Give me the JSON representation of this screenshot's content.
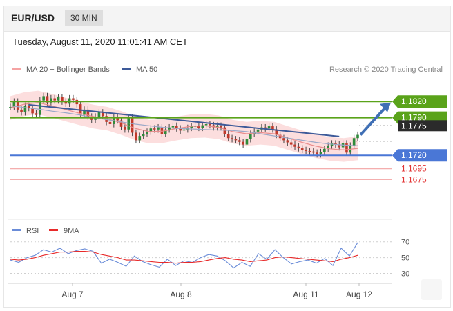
{
  "header": {
    "symbol": "EUR/USD",
    "timeframe": "30 MIN"
  },
  "datetime": "Tuesday, August 11, 2020 11:01:41 AM CET",
  "legend": {
    "ma20": "MA 20 + Bollinger Bands",
    "ma50": "MA 50",
    "research": "Research © 2020 Trading Central"
  },
  "rsi_legend": {
    "rsi": "RSI",
    "ma": "9MA"
  },
  "colors": {
    "green": "#5aa31a",
    "blue": "#4a77d6",
    "red": "#f26a6a",
    "bollinger": "#fbd3d3",
    "up": "#2e8b3a",
    "down": "#c0392b",
    "ma50": "#3d5a99"
  },
  "chart_data": [
    {
      "type": "line",
      "title": "",
      "x_ticks": [
        "Aug 7",
        "Aug 8",
        "Aug 11",
        "Aug 12"
      ],
      "levels": [
        {
          "value": 1.182,
          "label": "1.1820",
          "style": "green-tag"
        },
        {
          "value": 1.179,
          "label": "1.1790",
          "style": "green-tag"
        },
        {
          "value": 1.1775,
          "label": "1.1775",
          "style": "current-price"
        },
        {
          "value": 1.172,
          "label": "1.1720",
          "style": "blue-tag"
        },
        {
          "value": 1.1695,
          "label": "1.1695",
          "style": "red-text"
        },
        {
          "value": 1.1675,
          "label": "1.1675",
          "style": "red-text"
        }
      ],
      "ylim": [
        1.166,
        1.186
      ],
      "series": [
        {
          "values": [
            1.181,
            1.182,
            1.1805,
            1.18,
            1.1812,
            1.1808,
            1.1798,
            1.1795,
            1.1822,
            1.183,
            1.1818,
            1.1826,
            1.1822,
            1.1828,
            1.182,
            1.1816,
            1.1826,
            1.1823,
            1.1815,
            1.1795,
            1.1805,
            1.1792,
            1.1786,
            1.1792,
            1.18,
            1.1793,
            1.1782,
            1.1778,
            1.1792,
            1.1785,
            1.1773,
            1.1768,
            1.179,
            1.1762,
            1.1748,
            1.1756,
            1.176,
            1.1764,
            1.177,
            1.1768,
            1.1772,
            1.176,
            1.1768,
            1.1772,
            1.1775,
            1.177,
            1.1766,
            1.1768,
            1.1771,
            1.1774,
            1.1775,
            1.1771,
            1.1776,
            1.1778,
            1.1776,
            1.1772,
            1.1775,
            1.1772,
            1.176,
            1.1752,
            1.175,
            1.1748,
            1.1745,
            1.174,
            1.175,
            1.176,
            1.1764,
            1.1768,
            1.1772,
            1.177,
            1.1774,
            1.1768,
            1.1758,
            1.1752,
            1.1748,
            1.1744,
            1.174,
            1.1736,
            1.1733,
            1.173,
            1.1728,
            1.1727,
            1.1725,
            1.1722,
            1.1726,
            1.1732,
            1.1738,
            1.1742,
            1.174,
            1.1735,
            1.1742,
            1.1725,
            1.1738,
            1.1752,
            1.1758
          ]
        },
        {
          "name": "MA 50",
          "values": [
            1.1812,
            1.1809,
            1.1806,
            1.1802,
            1.1799,
            1.1795,
            1.179,
            1.1786,
            1.1782,
            1.1778,
            1.1775,
            1.1772,
            1.177,
            1.1769,
            1.1768,
            1.1767,
            1.1766,
            1.1764,
            1.176,
            1.1756,
            1.1752,
            1.1748,
            1.1744,
            1.1741,
            1.1739,
            1.1738
          ]
        },
        {
          "name": "MA 20",
          "values": [
            1.1808,
            1.1815,
            1.1818,
            1.1812,
            1.1805,
            1.1798,
            1.1792,
            1.1788,
            1.178,
            1.177,
            1.1764,
            1.1765,
            1.177,
            1.1774,
            1.1775,
            1.1772,
            1.1764,
            1.176,
            1.1762,
            1.176,
            1.1752,
            1.1744,
            1.1737,
            1.1732,
            1.173,
            1.1733
          ]
        }
      ]
    },
    {
      "type": "line",
      "y_ticks": [
        70,
        50,
        30
      ],
      "ylim": [
        20,
        75
      ],
      "series": [
        {
          "name": "RSI",
          "values": [
            47,
            44,
            50,
            53,
            60,
            57,
            62,
            55,
            59,
            61,
            58,
            43,
            48,
            44,
            39,
            52,
            45,
            41,
            38,
            48,
            40,
            46,
            44,
            50,
            54,
            52,
            46,
            37,
            44,
            39,
            55,
            48,
            60,
            50,
            42,
            45,
            47,
            43,
            49,
            40,
            62,
            52,
            69
          ]
        },
        {
          "name": "9MA",
          "values": [
            48,
            47,
            48,
            50,
            53,
            55,
            57,
            57,
            58,
            58,
            57,
            54,
            52,
            50,
            47,
            47,
            46,
            45,
            44,
            44,
            43,
            44,
            44,
            45,
            47,
            49,
            50,
            48,
            47,
            45,
            46,
            47,
            50,
            51,
            50,
            49,
            48,
            47,
            46,
            45,
            48,
            50,
            53
          ]
        }
      ]
    }
  ]
}
